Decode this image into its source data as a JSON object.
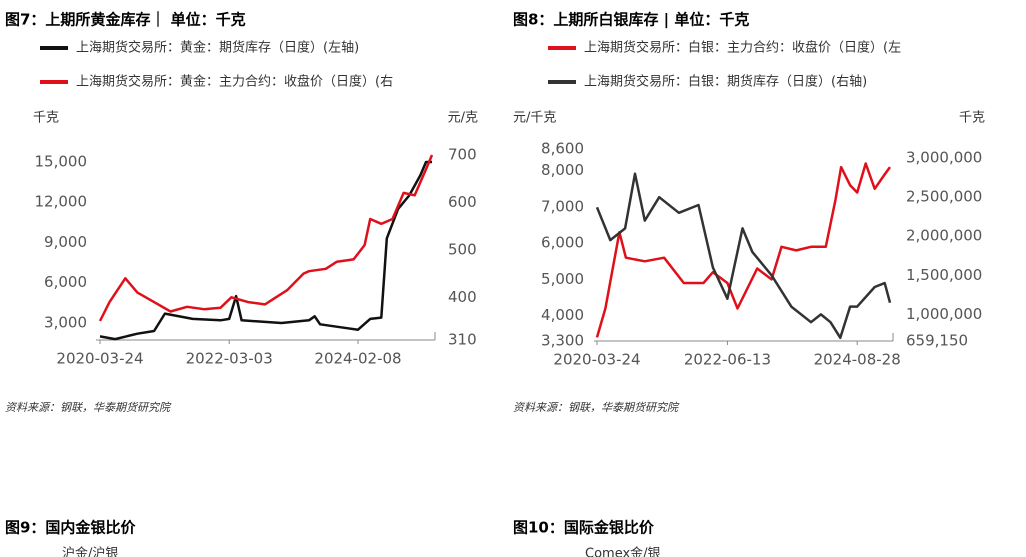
{
  "chart_data": [
    {
      "type": "line",
      "title": "图7：上期所黄金库存｜ 单位：千克",
      "source": "资料来源：钢联，华泰期货研究院",
      "y_label": "千克",
      "y2_label": "元/克",
      "xlim": [
        "2020-03-24",
        "2025-03-20"
      ],
      "xticks": [
        "2020-03-24",
        "2022-03-03",
        "2024-02-08"
      ],
      "ylim": [
        1730,
        15520
      ],
      "yticks": [
        {
          "value": 3000,
          "label": "3,000"
        },
        {
          "value": 6000,
          "label": "6,000"
        },
        {
          "value": 9000,
          "label": "9,000"
        },
        {
          "value": 12000,
          "label": "12,000"
        },
        {
          "value": 15000,
          "label": "15,000"
        }
      ],
      "y2lim": [
        310,
        700
      ],
      "y2ticks": [
        310,
        400,
        500,
        600,
        700
      ],
      "series": [
        {
          "name": "上海期货交易所：黄金：期货库存（日度）(左轴)",
          "color": "#111111",
          "x": [
            "2020-03-24",
            "2020-06-15",
            "2020-10-15",
            "2021-01-15",
            "2021-03-15",
            "2021-08-15",
            "2022-01-15",
            "2022-03-03",
            "2022-04-10",
            "2022-05-10",
            "2022-12-15",
            "2023-05-15",
            "2023-06-15",
            "2023-07-15",
            "2023-12-15",
            "2024-02-08",
            "2024-04-15",
            "2024-06-15",
            "2024-07-15",
            "2024-09-15",
            "2024-11-15",
            "2025-01-15",
            "2025-02-15",
            "2025-03-20"
          ],
          "values": [
            2000,
            1800,
            2200,
            2400,
            3700,
            3300,
            3200,
            3300,
            5000,
            3200,
            3000,
            3200,
            3500,
            2900,
            2600,
            2500,
            3300,
            3400,
            9300,
            11500,
            12500,
            14000,
            15000,
            15000
          ]
        },
        {
          "name": "上海期货交易所：黄金：主力合约：收盘价（日度）(右",
          "color": "#e0101a",
          "axis": "y2",
          "x": [
            "2020-03-24",
            "2020-05-15",
            "2020-08-10",
            "2020-10-15",
            "2021-01-15",
            "2021-04-15",
            "2021-07-15",
            "2021-10-15",
            "2022-01-15",
            "2022-03-15",
            "2022-06-15",
            "2022-09-15",
            "2023-01-15",
            "2023-04-15",
            "2023-05-15",
            "2023-08-15",
            "2023-10-15",
            "2024-01-15",
            "2024-03-15",
            "2024-04-15",
            "2024-06-15",
            "2024-08-15",
            "2024-10-15",
            "2024-12-15",
            "2025-02-15",
            "2025-03-20"
          ],
          "values": [
            350,
            390,
            440,
            410,
            390,
            370,
            380,
            375,
            378,
            400,
            390,
            385,
            415,
            450,
            455,
            460,
            475,
            480,
            510,
            565,
            555,
            565,
            620,
            615,
            670,
            700
          ]
        }
      ]
    },
    {
      "type": "line",
      "title": "图8：上期所白银库存 | 单位：千克",
      "source": "资料来源：钢联，华泰期货研究院",
      "y_label": "元/千克",
      "y2_label": "千克",
      "xlim": [
        "2020-03-24",
        "2025-03-20"
      ],
      "xticks": [
        "2020-03-24",
        "2022-06-13",
        "2024-08-28"
      ],
      "ylim": [
        3300,
        8600
      ],
      "yticks": [
        {
          "value": 3300,
          "label": "3,300"
        },
        {
          "value": 4000,
          "label": "4,000"
        },
        {
          "value": 5000,
          "label": "5,000"
        },
        {
          "value": 6000,
          "label": "6,000"
        },
        {
          "value": 7000,
          "label": "7,000"
        },
        {
          "value": 8000,
          "label": "8,000"
        },
        {
          "value": 8600,
          "label": "8,600"
        }
      ],
      "y2lim": [
        659150,
        3116600
      ],
      "y2ticks": [
        {
          "value": 659150,
          "label": "659,150"
        },
        {
          "value": 1000000,
          "label": "1,000,000"
        },
        {
          "value": 1500000,
          "label": "1,500,000"
        },
        {
          "value": 2000000,
          "label": "2,000,000"
        },
        {
          "value": 2500000,
          "label": "2,500,000"
        },
        {
          "value": 3000000,
          "label": "3,000,000"
        }
      ],
      "series": [
        {
          "name": "上海期货交易所：白银：主力合约：收盘价（日度）(左",
          "color": "#e0101a",
          "x": [
            "2020-03-24",
            "2020-05-15",
            "2020-08-10",
            "2020-09-20",
            "2021-01-15",
            "2021-05-15",
            "2021-09-15",
            "2022-01-15",
            "2022-03-15",
            "2022-06-13",
            "2022-08-15",
            "2022-12-15",
            "2023-03-15",
            "2023-05-15",
            "2023-08-15",
            "2023-11-15",
            "2024-02-15",
            "2024-04-15",
            "2024-05-20",
            "2024-07-15",
            "2024-08-28",
            "2024-10-20",
            "2024-12-15",
            "2025-02-15",
            "2025-03-20"
          ],
          "values": [
            3400,
            4200,
            6300,
            5600,
            5500,
            5600,
            4900,
            4900,
            5200,
            4900,
            4200,
            5300,
            5000,
            5900,
            5800,
            5900,
            5900,
            7200,
            8100,
            7600,
            7400,
            8200,
            7500,
            7900,
            8100
          ]
        },
        {
          "name": "上海期货交易所：白银：期货库存（日度）(右轴)",
          "color": "#333333",
          "axis": "y2",
          "x": [
            "2020-03-24",
            "2020-06-15",
            "2020-09-15",
            "2020-11-15",
            "2021-01-15",
            "2021-04-15",
            "2021-08-15",
            "2021-12-15",
            "2022-03-15",
            "2022-06-13",
            "2022-09-15",
            "2022-11-15",
            "2023-03-15",
            "2023-07-15",
            "2023-11-15",
            "2024-01-15",
            "2024-03-15",
            "2024-05-15",
            "2024-07-15",
            "2024-08-28",
            "2024-12-15",
            "2025-02-15",
            "2025-03-20"
          ],
          "values": [
            2370000,
            1950000,
            2100000,
            2800000,
            2200000,
            2500000,
            2300000,
            2400000,
            1600000,
            1200000,
            2100000,
            1800000,
            1500000,
            1100000,
            900000,
            1000000,
            900000,
            700000,
            1100000,
            1100000,
            1350000,
            1400000,
            1150000
          ]
        }
      ]
    }
  ],
  "figures": [
    {
      "title": "图9：国内金银比价",
      "legend": "沪金/沪银"
    },
    {
      "title": "图10：国际金银比价",
      "legend": "Comex金/银"
    }
  ]
}
